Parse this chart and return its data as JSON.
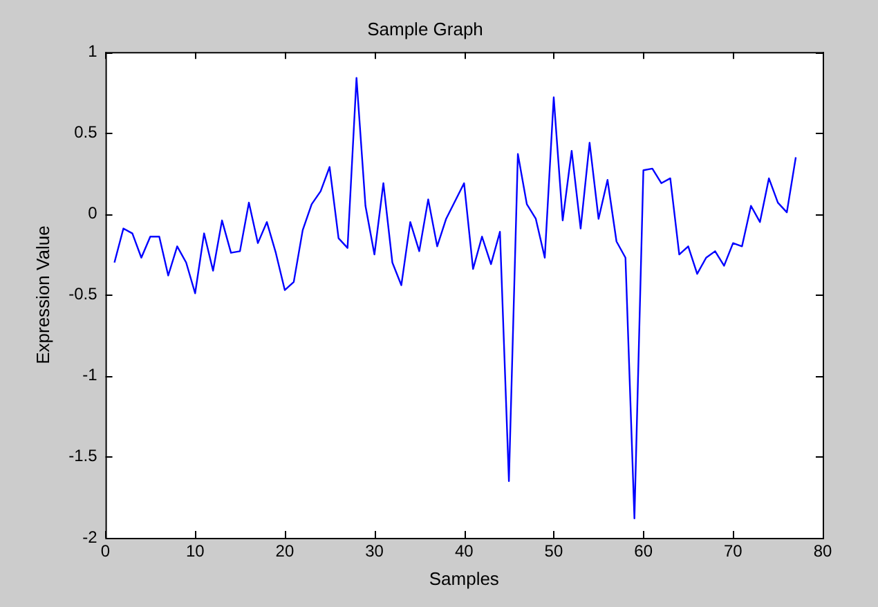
{
  "chart_data": {
    "type": "line",
    "title": "Sample Graph",
    "xlabel": "Samples",
    "ylabel": "Expression Value",
    "x": [
      1,
      2,
      3,
      4,
      5,
      6,
      7,
      8,
      9,
      10,
      11,
      12,
      13,
      14,
      15,
      16,
      17,
      18,
      19,
      20,
      21,
      22,
      23,
      24,
      25,
      26,
      27,
      28,
      29,
      30,
      31,
      32,
      33,
      34,
      35,
      36,
      37,
      38,
      39,
      40,
      41,
      42,
      43,
      44,
      45,
      46,
      47,
      48,
      49,
      50,
      51,
      52,
      53,
      54,
      55,
      56,
      57,
      58,
      59,
      60,
      61,
      62,
      63,
      64,
      65,
      66,
      67,
      68,
      69,
      70,
      71,
      72,
      73,
      74,
      75,
      76,
      77
    ],
    "series": [
      {
        "color": "#0000ff",
        "values": [
          -0.3,
          -0.09,
          -0.12,
          -0.27,
          -0.14,
          -0.14,
          -0.38,
          -0.2,
          -0.3,
          -0.49,
          -0.12,
          -0.35,
          -0.04,
          -0.24,
          -0.23,
          0.07,
          -0.18,
          -0.05,
          -0.24,
          -0.47,
          -0.42,
          -0.1,
          0.06,
          0.14,
          0.29,
          -0.15,
          -0.21,
          0.84,
          0.05,
          -0.25,
          0.19,
          -0.3,
          -0.44,
          -0.05,
          -0.23,
          0.09,
          -0.2,
          -0.03,
          0.08,
          0.19,
          -0.34,
          -0.14,
          -0.31,
          -0.11,
          -1.65,
          0.37,
          0.06,
          -0.03,
          -0.27,
          0.72,
          -0.04,
          0.39,
          -0.09,
          0.44,
          -0.03,
          0.21,
          -0.17,
          -0.27,
          -1.88,
          0.27,
          0.28,
          0.19,
          0.22,
          -0.25,
          -0.2,
          -0.37,
          -0.27,
          -0.23,
          -0.32,
          -0.18,
          -0.2,
          0.05,
          -0.05,
          0.22,
          0.07,
          0.01,
          0.35
        ]
      }
    ],
    "xlim": [
      0,
      80
    ],
    "xticks": [
      0,
      10,
      20,
      30,
      40,
      50,
      60,
      70,
      80
    ],
    "ylim": [
      -2,
      1
    ],
    "yticks": [
      -2,
      -1.5,
      -1,
      -0.5,
      0,
      0.5,
      1
    ],
    "grid": false,
    "legend": false,
    "marker": "none",
    "line_style": "solid"
  }
}
